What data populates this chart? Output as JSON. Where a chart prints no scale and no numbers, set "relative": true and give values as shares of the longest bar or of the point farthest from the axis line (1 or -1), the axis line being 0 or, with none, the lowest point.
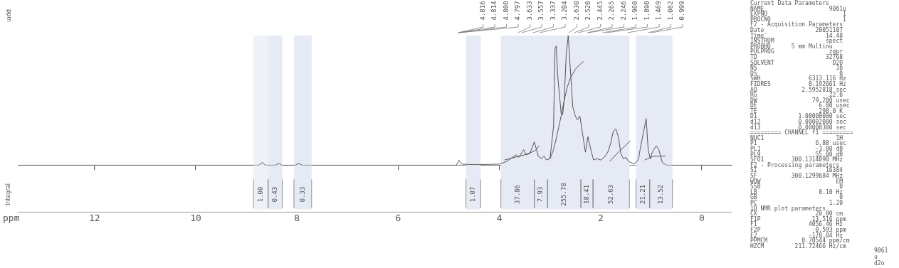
{
  "chart_data": {
    "type": "line",
    "relative": true,
    "xlabel": "ppm",
    "ylabel": "ppm",
    "xlim": [
      13.516,
      -0.593
    ],
    "xticks": [
      12,
      10,
      8,
      6,
      4,
      2,
      0
    ],
    "grid": false,
    "legend": false,
    "marker": "none",
    "line_style": "solid",
    "bands": [
      {
        "axis": "x",
        "from": 8.86,
        "to": 8.57,
        "label": "1.00",
        "color": "#eef1f8"
      },
      {
        "axis": "x",
        "from": 8.57,
        "to": 8.29,
        "label": "0.43",
        "color": "#e6eaf4"
      },
      {
        "axis": "x",
        "from": 8.06,
        "to": 7.71,
        "label": "0.33",
        "color": "#e6eaf4"
      },
      {
        "axis": "x",
        "from": 4.66,
        "to": 4.37,
        "label": "1.07",
        "color": "#e6eaf4"
      },
      {
        "axis": "x",
        "from": 3.97,
        "to": 3.31,
        "label": "37.86",
        "color": "#e6eaf4"
      },
      {
        "axis": "x",
        "from": 3.31,
        "to": 3.05,
        "label": "7.93",
        "color": "#e6eaf4"
      },
      {
        "axis": "x",
        "from": 3.05,
        "to": 2.39,
        "label": "255.78",
        "color": "#e6eaf4"
      },
      {
        "axis": "x",
        "from": 2.39,
        "to": 2.15,
        "label": "18.41",
        "color": "#e6eaf4"
      },
      {
        "axis": "x",
        "from": 2.15,
        "to": 1.43,
        "label": "52.63",
        "color": "#e6eaf4"
      },
      {
        "axis": "x",
        "from": 1.3,
        "to": 1.03,
        "label": "21.21",
        "color": "#e6eaf4"
      },
      {
        "axis": "x",
        "from": 1.03,
        "to": 0.58,
        "label": "13.52",
        "color": "#e6eaf4"
      }
    ],
    "series": [
      {
        "color": "#555555",
        "x": [
          13.5,
          9.0,
          8.75,
          8.69,
          8.62,
          8.42,
          8.36,
          8.3,
          8.03,
          7.97,
          7.9,
          5.0,
          4.85,
          4.8,
          4.74,
          4.5,
          4.0,
          3.85,
          3.75,
          3.67,
          3.62,
          3.52,
          3.47,
          3.4,
          3.31,
          3.23,
          3.17,
          3.12,
          3.07,
          3.0,
          2.93,
          2.9,
          2.875,
          2.85,
          2.78,
          2.75,
          2.72,
          2.68,
          2.64,
          2.6,
          2.55,
          2.5,
          2.46,
          2.41,
          2.36,
          2.3,
          2.25,
          2.2,
          2.14,
          2.07,
          2.0,
          1.93,
          1.86,
          1.8,
          1.75,
          1.7,
          1.65,
          1.6,
          1.55,
          1.5,
          1.45,
          1.35,
          1.3,
          1.25,
          1.22,
          1.1,
          1.06,
          1.02,
          0.98,
          0.9,
          0.85,
          0.78,
          0.7,
          -0.59
        ],
        "values": [
          0,
          0,
          0,
          0.02,
          0,
          0,
          0.015,
          0,
          0,
          0.015,
          0,
          0,
          0,
          0.038,
          0.008,
          0.004,
          0.008,
          0.03,
          0.06,
          0.08,
          0.06,
          0.12,
          0.08,
          0.09,
          0.18,
          0.07,
          0.05,
          0.07,
          0.04,
          0.05,
          0.3,
          0.9,
          0.92,
          0.7,
          0.4,
          0.39,
          0.5,
          0.85,
          1.0,
          0.75,
          0.45,
          0.38,
          0.35,
          0.38,
          0.25,
          0.1,
          0.22,
          0.13,
          0.04,
          0.05,
          0.04,
          0.06,
          0.1,
          0.17,
          0.26,
          0.28,
          0.22,
          0.09,
          0.05,
          0.06,
          0.03,
          0.01,
          0.02,
          0.05,
          0.12,
          0.36,
          0.12,
          0.05,
          0.1,
          0.15,
          0.12,
          0.02,
          0,
          0
        ]
      },
      {
        "color": "#555555",
        "x": [
          3.0,
          2.93,
          2.88,
          2.83,
          2.78,
          2.72,
          2.66,
          2.6,
          2.5,
          2.4,
          2.34
        ],
        "values": [
          0.05,
          0.12,
          0.2,
          0.29,
          0.38,
          0.5,
          0.6,
          0.67,
          0.74,
          0.78,
          0.8
        ]
      },
      {
        "color": "#555555",
        "x": [
          3.9,
          3.7,
          3.5,
          3.3,
          3.21
        ],
        "values": [
          0.04,
          0.06,
          0.08,
          0.11,
          0.15
        ]
      },
      {
        "color": "#555555",
        "x": [
          1.82,
          1.65,
          1.41
        ],
        "values": [
          0.03,
          0.1,
          0.19
        ]
      },
      {
        "color": "#555555",
        "x": [
          1.13,
          0.95,
          0.72
        ],
        "values": [
          0.04,
          0.07,
          0.07
        ]
      }
    ],
    "annotations": [
      {
        "text": "4.816",
        "x": 4.816
      },
      {
        "text": "4.814",
        "x": 4.814
      },
      {
        "text": "4.800",
        "x": 4.8
      },
      {
        "text": "4.797",
        "x": 4.797
      },
      {
        "text": "3.633",
        "x": 3.633
      },
      {
        "text": "3.557",
        "x": 3.557
      },
      {
        "text": "3.337",
        "x": 3.337
      },
      {
        "text": "3.204",
        "x": 3.204
      },
      {
        "text": "2.630",
        "x": 2.63
      },
      {
        "text": "2.520",
        "x": 2.52
      },
      {
        "text": "2.445",
        "x": 2.445
      },
      {
        "text": "2.265",
        "x": 2.265
      },
      {
        "text": "2.246",
        "x": 2.246
      },
      {
        "text": "1.960",
        "x": 1.96
      },
      {
        "text": "1.890",
        "x": 1.89
      },
      {
        "text": "1.469",
        "x": 1.469
      },
      {
        "text": "1.062",
        "x": 1.062
      },
      {
        "text": "0.999",
        "x": 0.999
      },
      "Current Data Parameters",
      "NAME                   9061u",
      "EXPNO                      1",
      "PROCNO                     1",
      "F2 - Acquisition Parameters",
      "Date_              20051107",
      "Time                  14.48",
      "INSTRUM               spect",
      "PROBHD      5 mm Multinu",
      "PULPROG                zgpr",
      "TD                    32768",
      "SOLVENT                 D2O",
      "NS                       16",
      "DS                        0",
      "SWH              6313.116 Hz",
      "FIDRES           0.192661 Hz",
      "AQ             2.5952818 sec",
      "RG                     22.6",
      "DW                79.200 usec",
      "DE                  6.00 usec",
      "TE                  298.0 K",
      "D1            1.00000000 sec",
      "d12           0.00002000 sec",
      "d13           0.00000300 sec",
      "========= CHANNEL f1 =========",
      "NUC1                     1H",
      "P1                 6.88 usec",
      "PL1                -3.00 dB",
      "PL9                55.00 dB",
      "SFO1        300.1314090 MHz",
      "F2 - Processing parameters",
      "SI                    16384",
      "SF          300.1299684 MHz",
      "WDW                      EM",
      "SSB                       0",
      "LB                  0.10 Hz",
      "GB                        0",
      "PC                     1.20",
      "1D NMR plot parameters",
      "CX                 20.00 cm",
      "F1P               13.516 ppm",
      "F1               4056.46 Hz",
      "F2P               -0.593 ppm",
      "F2               -178.04 Hz",
      "PPMCM          0.70544 ppm/cm",
      "HZCM         211.72466 Hz/cm",
      "Integral",
      "9061\nu\nd2o"
    ]
  }
}
